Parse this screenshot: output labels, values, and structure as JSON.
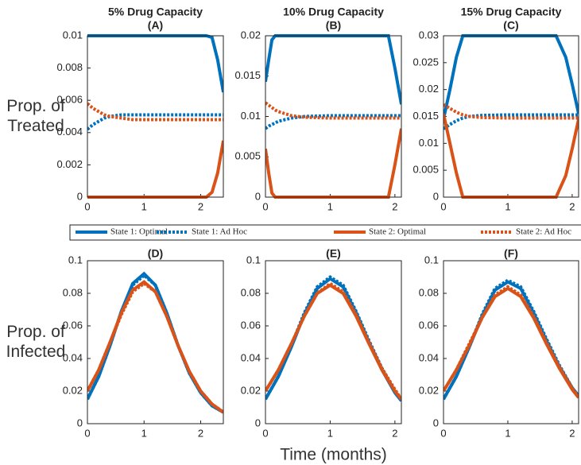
{
  "chart_data": [
    {
      "type": "line",
      "title": "5% Drug Capacity",
      "subtitle": "(A)",
      "ylabel": [
        "Prop. of",
        "Treated"
      ],
      "x": [
        0,
        0.1,
        0.2,
        0.3,
        0.4,
        0.6,
        0.8,
        1,
        1.5,
        2,
        2.1,
        2.2,
        2.3,
        2.4
      ],
      "xlim": [
        0,
        2.4
      ],
      "xticks": [
        0,
        1,
        2
      ],
      "ylim": [
        0,
        0.01
      ],
      "yticks": [
        0,
        0.002,
        0.004,
        0.006,
        0.008,
        0.01
      ],
      "series": [
        {
          "name": "State 1: Optimal",
          "color": "#0072bd",
          "style": "solid",
          "values": [
            0.01,
            0.01,
            0.01,
            0.01,
            0.01,
            0.01,
            0.01,
            0.01,
            0.01,
            0.01,
            0.01,
            0.0099,
            0.0085,
            0.0065
          ]
        },
        {
          "name": "State 1: Ad Hoc",
          "color": "#0072bd",
          "style": "dotted",
          "values": [
            0.0042,
            0.0045,
            0.0047,
            0.0049,
            0.005,
            0.0051,
            0.0051,
            0.0051,
            0.0051,
            0.0051,
            0.0051,
            0.0051,
            0.0051,
            0.0051
          ]
        },
        {
          "name": "State 2: Optimal",
          "color": "#d95319",
          "style": "solid",
          "values": [
            0,
            0,
            0,
            0,
            0,
            0,
            0,
            0,
            0,
            0,
            0,
            0.0003,
            0.0015,
            0.0035
          ]
        },
        {
          "name": "State 2: Ad Hoc",
          "color": "#d95319",
          "style": "dotted",
          "values": [
            0.0058,
            0.0055,
            0.0053,
            0.0051,
            0.005,
            0.0049,
            0.0048,
            0.0048,
            0.0048,
            0.0048,
            0.0048,
            0.0048,
            0.0048,
            0.0048
          ]
        }
      ]
    },
    {
      "type": "line",
      "title": "10% Drug Capacity",
      "subtitle": "(B)",
      "x": [
        0,
        0.05,
        0.1,
        0.15,
        0.2,
        0.4,
        0.6,
        1,
        1.5,
        1.9,
        2,
        2.1
      ],
      "xlim": [
        0,
        2.1
      ],
      "xticks": [
        0,
        1,
        2
      ],
      "ylim": [
        0,
        0.02
      ],
      "yticks": [
        0,
        0.005,
        0.01,
        0.015,
        0.02
      ],
      "series": [
        {
          "color": "#0072bd",
          "style": "solid",
          "values": [
            0.0143,
            0.017,
            0.0195,
            0.02,
            0.02,
            0.02,
            0.02,
            0.02,
            0.02,
            0.02,
            0.016,
            0.0115
          ]
        },
        {
          "color": "#0072bd",
          "style": "dotted",
          "values": [
            0.0085,
            0.0088,
            0.009,
            0.0092,
            0.0094,
            0.0098,
            0.01,
            0.0101,
            0.0101,
            0.0101,
            0.0101,
            0.0101
          ]
        },
        {
          "color": "#d95319",
          "style": "solid",
          "values": [
            0.006,
            0.003,
            0.0005,
            0,
            0,
            0,
            0,
            0,
            0,
            0,
            0.004,
            0.0085
          ]
        },
        {
          "color": "#d95319",
          "style": "dotted",
          "values": [
            0.0117,
            0.0114,
            0.0111,
            0.0108,
            0.0106,
            0.0101,
            0.0099,
            0.0098,
            0.0098,
            0.0098,
            0.0098,
            0.0098
          ]
        }
      ]
    },
    {
      "type": "line",
      "title": "15% Drug Capacity",
      "subtitle": "(C)",
      "x": [
        0,
        0.1,
        0.2,
        0.3,
        0.4,
        0.6,
        1,
        1.5,
        1.75,
        1.9,
        2,
        2.1
      ],
      "xlim": [
        0,
        2.1
      ],
      "xticks": [
        0,
        1,
        2
      ],
      "ylim": [
        0,
        0.03
      ],
      "yticks": [
        0,
        0.005,
        0.01,
        0.015,
        0.02,
        0.025,
        0.03
      ],
      "series": [
        {
          "color": "#0072bd",
          "style": "solid",
          "values": [
            0.0145,
            0.02,
            0.026,
            0.03,
            0.03,
            0.03,
            0.03,
            0.03,
            0.03,
            0.026,
            0.021,
            0.0155
          ]
        },
        {
          "color": "#0072bd",
          "style": "dotted",
          "values": [
            0.0127,
            0.0135,
            0.0142,
            0.0147,
            0.015,
            0.0152,
            0.0153,
            0.0153,
            0.0153,
            0.0153,
            0.0153,
            0.0153
          ]
        },
        {
          "color": "#d95319",
          "style": "solid",
          "values": [
            0.0155,
            0.01,
            0.0045,
            0,
            0,
            0,
            0,
            0,
            0,
            0.004,
            0.009,
            0.0145
          ]
        },
        {
          "color": "#d95319",
          "style": "dotted",
          "values": [
            0.0172,
            0.0165,
            0.0158,
            0.0153,
            0.015,
            0.0148,
            0.0147,
            0.0147,
            0.0147,
            0.0147,
            0.0147,
            0.0147
          ]
        }
      ]
    },
    {
      "type": "line",
      "title": "(D)",
      "ylabel": [
        "Prop. of",
        "Infected"
      ],
      "x": [
        0,
        0.2,
        0.4,
        0.6,
        0.8,
        1,
        1.2,
        1.4,
        1.6,
        1.8,
        2,
        2.2,
        2.4
      ],
      "xlim": [
        0,
        2.4
      ],
      "xticks": [
        0,
        1,
        2
      ],
      "ylim": [
        0,
        0.1
      ],
      "yticks": [
        0,
        0.02,
        0.04,
        0.06,
        0.08,
        0.1
      ],
      "series": [
        {
          "color": "#0072bd",
          "style": "solid",
          "values": [
            0.015,
            0.029,
            0.048,
            0.069,
            0.086,
            0.092,
            0.085,
            0.068,
            0.048,
            0.031,
            0.019,
            0.011,
            0.007
          ]
        },
        {
          "color": "#0072bd",
          "style": "dotted",
          "values": [
            0.015,
            0.029,
            0.048,
            0.069,
            0.085,
            0.091,
            0.085,
            0.068,
            0.048,
            0.031,
            0.019,
            0.011,
            0.007
          ]
        },
        {
          "color": "#d95319",
          "style": "solid",
          "values": [
            0.02,
            0.033,
            0.05,
            0.068,
            0.082,
            0.087,
            0.081,
            0.066,
            0.048,
            0.032,
            0.02,
            0.012,
            0.007
          ]
        },
        {
          "color": "#d95319",
          "style": "dotted",
          "values": [
            0.02,
            0.033,
            0.05,
            0.067,
            0.081,
            0.086,
            0.081,
            0.066,
            0.048,
            0.032,
            0.02,
            0.012,
            0.007
          ]
        }
      ]
    },
    {
      "type": "line",
      "title": "(E)",
      "xlabel": "Time (months)",
      "x": [
        0,
        0.2,
        0.4,
        0.6,
        0.8,
        1,
        1.2,
        1.4,
        1.6,
        1.8,
        2,
        2.1
      ],
      "xlim": [
        0,
        2.1
      ],
      "xticks": [
        0,
        1,
        2
      ],
      "ylim": [
        0,
        0.1
      ],
      "yticks": [
        0,
        0.02,
        0.04,
        0.06,
        0.08,
        0.1
      ],
      "series": [
        {
          "color": "#0072bd",
          "style": "solid",
          "values": [
            0.015,
            0.029,
            0.047,
            0.067,
            0.083,
            0.089,
            0.084,
            0.068,
            0.05,
            0.033,
            0.019,
            0.014
          ]
        },
        {
          "color": "#0072bd",
          "style": "dotted",
          "values": [
            0.015,
            0.029,
            0.048,
            0.068,
            0.084,
            0.09,
            0.085,
            0.069,
            0.051,
            0.034,
            0.02,
            0.014
          ]
        },
        {
          "color": "#d95319",
          "style": "solid",
          "values": [
            0.02,
            0.033,
            0.049,
            0.066,
            0.08,
            0.085,
            0.08,
            0.066,
            0.049,
            0.033,
            0.02,
            0.015
          ]
        },
        {
          "color": "#d95319",
          "style": "dotted",
          "values": [
            0.02,
            0.033,
            0.049,
            0.066,
            0.08,
            0.086,
            0.081,
            0.067,
            0.05,
            0.034,
            0.021,
            0.015
          ]
        }
      ]
    },
    {
      "type": "line",
      "title": "(F)",
      "x": [
        0,
        0.2,
        0.4,
        0.6,
        0.8,
        1,
        1.2,
        1.4,
        1.6,
        1.8,
        2,
        2.1
      ],
      "xlim": [
        0,
        2.1
      ],
      "xticks": [
        0,
        1,
        2
      ],
      "ylim": [
        0,
        0.1
      ],
      "yticks": [
        0,
        0.02,
        0.04,
        0.06,
        0.08,
        0.1
      ],
      "series": [
        {
          "color": "#0072bd",
          "style": "solid",
          "values": [
            0.015,
            0.029,
            0.047,
            0.066,
            0.082,
            0.087,
            0.083,
            0.068,
            0.051,
            0.035,
            0.022,
            0.017
          ]
        },
        {
          "color": "#0072bd",
          "style": "dotted",
          "values": [
            0.015,
            0.029,
            0.047,
            0.067,
            0.083,
            0.088,
            0.084,
            0.069,
            0.052,
            0.036,
            0.022,
            0.017
          ]
        },
        {
          "color": "#d95319",
          "style": "solid",
          "values": [
            0.02,
            0.033,
            0.048,
            0.065,
            0.078,
            0.083,
            0.078,
            0.065,
            0.049,
            0.034,
            0.021,
            0.016
          ]
        },
        {
          "color": "#d95319",
          "style": "dotted",
          "values": [
            0.02,
            0.033,
            0.049,
            0.065,
            0.079,
            0.084,
            0.079,
            0.066,
            0.05,
            0.035,
            0.022,
            0.016
          ]
        }
      ]
    }
  ]
}
